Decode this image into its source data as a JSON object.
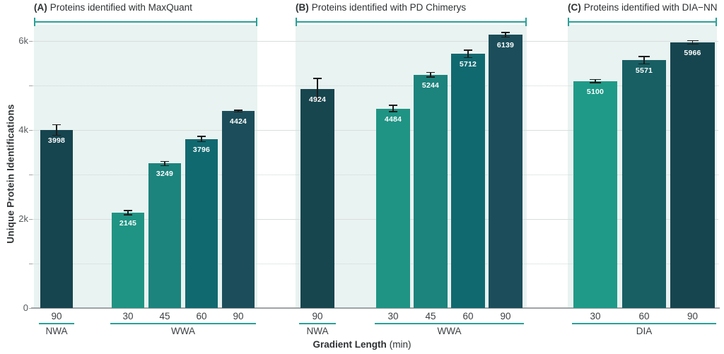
{
  "y_axis": {
    "title": "Unique Protein Identifications",
    "major_ticks": [
      {
        "value": 0,
        "label": "0"
      },
      {
        "value": 2000,
        "label": "2k"
      },
      {
        "value": 4000,
        "label": "4k"
      },
      {
        "value": 6000,
        "label": "6k"
      }
    ],
    "minor_ticks": [
      1000,
      3000,
      5000
    ],
    "max": 6000
  },
  "x_axis": {
    "title_bold": "Gradient Length",
    "title_unit": "(min)"
  },
  "style": {
    "panel_bg": "#e9f3f1",
    "accent": "#2aa198",
    "grid_major": "#d8dddd",
    "grid_minor": "#ccd5d5",
    "baseline": "#9fa4a6",
    "error_color": "#1c1c1c"
  },
  "chart_data": [
    {
      "type": "bar",
      "panel": "A",
      "title_prefix": "(A)",
      "title": "Proteins identified with MaxQuant",
      "ylim": [
        0,
        6000
      ],
      "groups": [
        {
          "name": "NWA",
          "bars": [
            {
              "length": "90",
              "value": 3998,
              "error": 130,
              "color": "#16444f"
            }
          ]
        },
        {
          "name": "WWA",
          "bars": [
            {
              "length": "30",
              "value": 2145,
              "error": 60,
              "color": "#1f9484"
            },
            {
              "length": "45",
              "value": 3249,
              "error": 60,
              "color": "#1d837d"
            },
            {
              "length": "60",
              "value": 3796,
              "error": 70,
              "color": "#116970"
            },
            {
              "length": "90",
              "value": 4424,
              "error": 30,
              "color": "#1b4e5a"
            }
          ]
        }
      ]
    },
    {
      "type": "bar",
      "panel": "B",
      "title_prefix": "(B)",
      "title": "Proteins identified with PD Chimerys",
      "ylim": [
        0,
        6000
      ],
      "groups": [
        {
          "name": "NWA",
          "bars": [
            {
              "length": "90",
              "value": 4924,
              "error": 250,
              "color": "#17464f"
            }
          ]
        },
        {
          "name": "WWA",
          "bars": [
            {
              "length": "30",
              "value": 4484,
              "error": 80,
              "color": "#1f9484"
            },
            {
              "length": "45",
              "value": 5244,
              "error": 65,
              "color": "#1d837d"
            },
            {
              "length": "60",
              "value": 5712,
              "error": 95,
              "color": "#116970"
            },
            {
              "length": "90",
              "value": 6139,
              "error": 65,
              "color": "#1b4e5a"
            }
          ]
        }
      ]
    },
    {
      "type": "bar",
      "panel": "C",
      "title_prefix": "(C)",
      "title": "Proteins identified with DIA−NN",
      "ylim": [
        0,
        6000
      ],
      "groups": [
        {
          "name": "DIA",
          "bars": [
            {
              "length": "30",
              "value": 5100,
              "error": 50,
              "color": "#1f9a88"
            },
            {
              "length": "60",
              "value": 5571,
              "error": 95,
              "color": "#185f63"
            },
            {
              "length": "90",
              "value": 5966,
              "error": 50,
              "color": "#17454f"
            }
          ]
        }
      ]
    }
  ]
}
